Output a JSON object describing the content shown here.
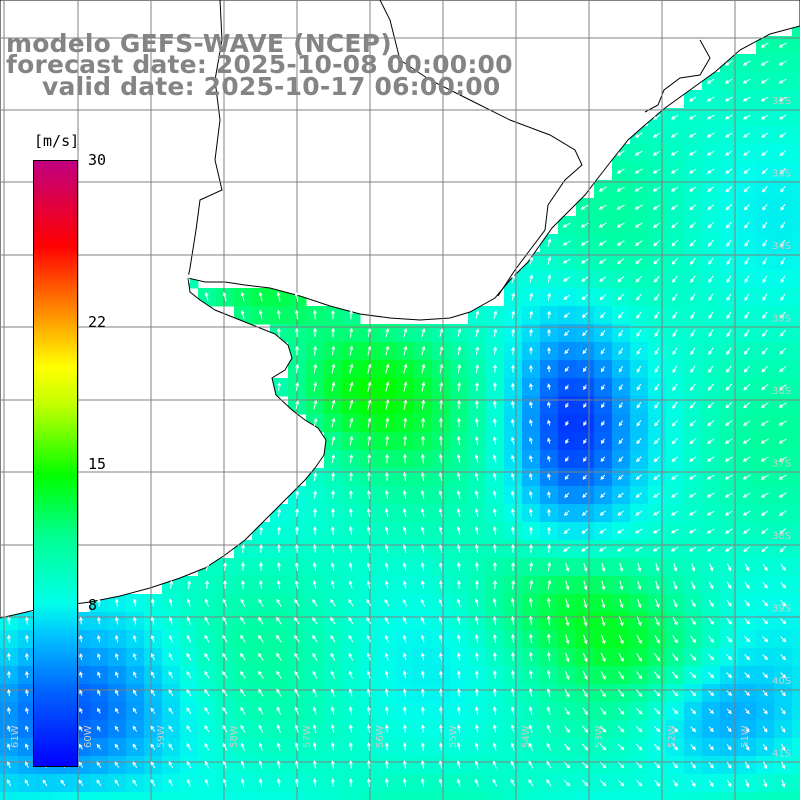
{
  "title": {
    "line1": "modelo GEFS-WAVE (NCEP)",
    "line2": "forecast date: 2025-10-08 00:00:00",
    "line3": "valid date: 2025-10-17 06:00:00"
  },
  "legend": {
    "unit": "[m/s]",
    "ticks": [
      "30",
      "22",
      "15",
      "8"
    ],
    "tick_values": [
      30,
      22,
      15,
      8
    ],
    "range": [
      0,
      30
    ],
    "colors": [
      "#0000ff",
      "#0080ff",
      "#00ffff",
      "#00ff00",
      "#ffff00",
      "#ff8000",
      "#ff0000",
      "#c00080"
    ]
  },
  "axes": {
    "lon_labels": [
      "61W",
      "60W",
      "59W",
      "58W",
      "57W",
      "56W",
      "55W",
      "54W",
      "53W",
      "52W",
      "51W"
    ],
    "lat_labels": [
      "32S",
      "33S",
      "34S",
      "35S",
      "36S",
      "37S",
      "38S",
      "39S",
      "40S",
      "41S"
    ]
  },
  "colors": {
    "land": "#ffffff",
    "coastline": "#000000",
    "grid": "#808080",
    "arrows": "#ffffff",
    "title": "#848484"
  }
}
